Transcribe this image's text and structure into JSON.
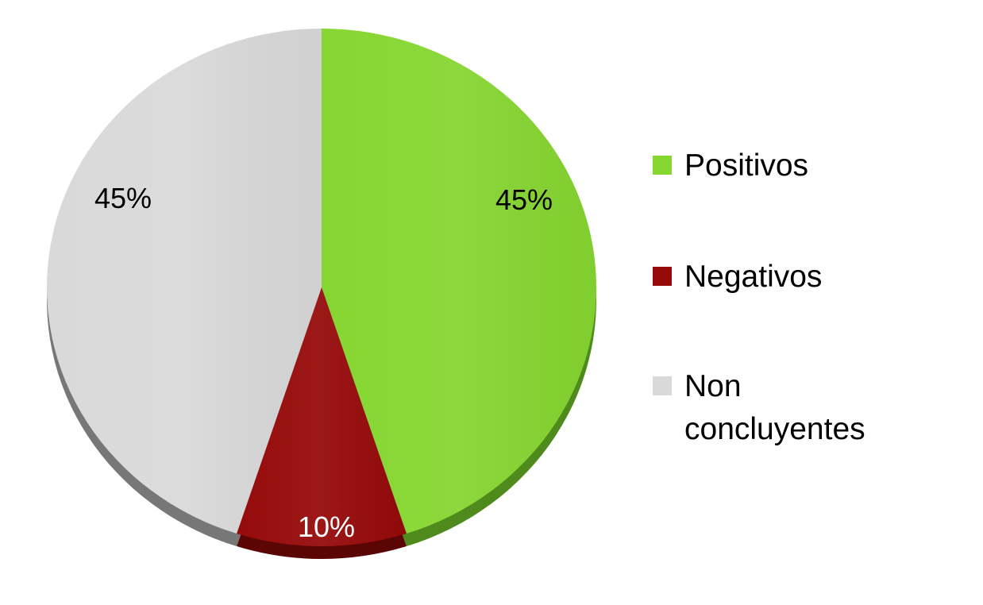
{
  "chart_data": {
    "type": "pie",
    "title": "",
    "slices": [
      {
        "label": "Positivos",
        "value": 45,
        "display": "45%",
        "color": "#86d631",
        "shade": "#4e8a1c",
        "text_color": "#000000"
      },
      {
        "label": "Negativos",
        "value": 10,
        "display": "10%",
        "color": "#960a0a",
        "shade": "#5c0505",
        "text_color": "#ffffff"
      },
      {
        "label": "Non concluyentes",
        "value": 45,
        "display": "45%",
        "color": "#d9d9d9",
        "shade": "#777777",
        "text_color": "#000000"
      }
    ],
    "start_angle_deg": 0,
    "direction": "clockwise",
    "legend_position": "right",
    "style": "3d"
  }
}
